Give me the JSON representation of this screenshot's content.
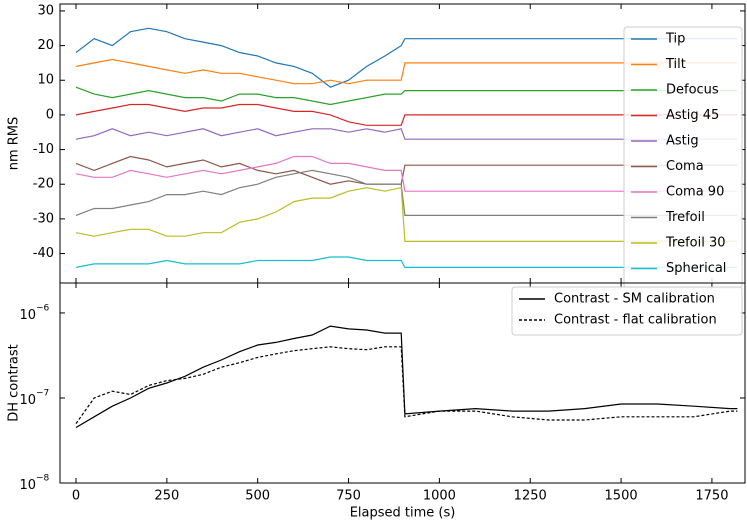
{
  "chart_data": [
    {
      "type": "line",
      "ylabel": "nm RMS",
      "x": [
        0,
        50,
        100,
        150,
        200,
        250,
        300,
        350,
        400,
        450,
        500,
        550,
        600,
        650,
        700,
        750,
        800,
        850,
        895,
        905,
        1000,
        1100,
        1200,
        1300,
        1400,
        1500,
        1600,
        1700,
        1800,
        1820
      ],
      "xlim": [
        -44,
        1841
      ],
      "xticks": [
        0,
        250,
        500,
        750,
        1000,
        1250,
        1500,
        1750
      ],
      "ylim": [
        -48.5,
        32
      ],
      "yticks": [
        30,
        20,
        10,
        0,
        -10,
        -20,
        -30,
        -40
      ],
      "legend": "upper right",
      "series": [
        {
          "name": "Tip",
          "color": "#1f77b4",
          "values": [
            18,
            22,
            20,
            24,
            25,
            24,
            22,
            21,
            20,
            18,
            17,
            15,
            14,
            12,
            8,
            10,
            14,
            17,
            20,
            22,
            22,
            22,
            22,
            22,
            22,
            22,
            22,
            22,
            22,
            22
          ]
        },
        {
          "name": "Tilt",
          "color": "#ff7f0e",
          "values": [
            14,
            15,
            16,
            15,
            14,
            13,
            12,
            13,
            12,
            12,
            11,
            10,
            9,
            9,
            10,
            9,
            10,
            10,
            10,
            15,
            15,
            15,
            15,
            15,
            15,
            15,
            15,
            15,
            15,
            15
          ]
        },
        {
          "name": "Defocus",
          "color": "#2ca02c",
          "values": [
            8,
            6,
            5,
            6,
            7,
            6,
            5,
            5,
            4,
            6,
            6,
            5,
            5,
            4,
            3,
            4,
            5,
            6,
            6,
            7,
            7,
            7,
            7,
            7,
            7,
            7,
            7,
            7,
            7,
            7
          ]
        },
        {
          "name": "Astig 45",
          "color": "#d62728",
          "values": [
            0,
            1,
            2,
            3,
            3,
            2,
            1,
            2,
            2,
            3,
            3,
            2,
            1,
            1,
            0,
            -2,
            -3,
            -3,
            -3,
            0,
            0,
            0,
            0,
            0,
            0,
            0,
            0,
            0,
            0,
            0
          ]
        },
        {
          "name": "Astig",
          "color": "#9467bd",
          "values": [
            -7,
            -6,
            -4,
            -6,
            -5,
            -6,
            -5,
            -4,
            -6,
            -5,
            -4,
            -6,
            -5,
            -4,
            -4,
            -5,
            -4,
            -5,
            -4,
            -7,
            -7,
            -7,
            -7,
            -7,
            -7,
            -7,
            -7,
            -7,
            -7,
            -7
          ]
        },
        {
          "name": "Coma",
          "color": "#8c564b",
          "values": [
            -14,
            -16,
            -14,
            -12,
            -13,
            -15,
            -14,
            -13,
            -15,
            -14,
            -16,
            -17,
            -16,
            -18,
            -20,
            -19,
            -20,
            -20,
            -20,
            -14.5,
            -14.5,
            -14.5,
            -14.5,
            -14.5,
            -14.5,
            -14.5,
            -14.5,
            -14.5,
            -14.5,
            -14.5
          ]
        },
        {
          "name": "Coma 90",
          "color": "#e377c2",
          "values": [
            -17,
            -18,
            -18,
            -16,
            -17,
            -18,
            -17,
            -16,
            -17,
            -16,
            -15,
            -14,
            -12,
            -12,
            -14,
            -14,
            -15,
            -16,
            -16,
            -22,
            -22,
            -22,
            -22,
            -22,
            -22,
            -22,
            -22,
            -22,
            -22,
            -22
          ]
        },
        {
          "name": "Trefoil",
          "color": "#7f7f7f",
          "values": [
            -29,
            -27,
            -27,
            -26,
            -25,
            -23,
            -23,
            -22,
            -23,
            -21,
            -20,
            -18,
            -17,
            -16,
            -17,
            -18,
            -20,
            -20,
            -20,
            -29,
            -29,
            -29,
            -29,
            -29,
            -29,
            -29,
            -29,
            -29,
            -29,
            -29
          ]
        },
        {
          "name": "Trefoil 30",
          "color": "#bcbd22",
          "values": [
            -34,
            -35,
            -34,
            -33,
            -33,
            -35,
            -35,
            -34,
            -34,
            -31,
            -30,
            -28,
            -25,
            -24,
            -24,
            -22,
            -21,
            -22,
            -21,
            -36.5,
            -36.5,
            -36.5,
            -36.5,
            -36.5,
            -36.5,
            -36.5,
            -36.5,
            -36.5,
            -36.5,
            -36.5
          ]
        },
        {
          "name": "Spherical",
          "color": "#17becf",
          "values": [
            -44,
            -43,
            -43,
            -43,
            -43,
            -42,
            -43,
            -43,
            -43,
            -43,
            -42,
            -42,
            -42,
            -42,
            -41,
            -41,
            -42,
            -42,
            -42,
            -44,
            -44,
            -44,
            -44,
            -44,
            -44,
            -44,
            -44,
            -44,
            -44,
            -44
          ]
        }
      ]
    },
    {
      "type": "line",
      "xlabel": "Elapsed time (s)",
      "ylabel": "DH contrast",
      "log_y": true,
      "x": [
        0,
        50,
        100,
        150,
        200,
        250,
        300,
        350,
        400,
        450,
        500,
        550,
        600,
        650,
        700,
        750,
        800,
        850,
        895,
        905,
        1000,
        1100,
        1200,
        1300,
        1400,
        1500,
        1600,
        1700,
        1800,
        1820
      ],
      "xlim": [
        -44,
        1841
      ],
      "xticks": [
        0,
        250,
        500,
        750,
        1000,
        1250,
        1500,
        1750
      ],
      "ylim": [
        1e-08,
        2.25e-06
      ],
      "yticks": [
        {
          "value": 1e-06,
          "label": "10",
          "exponent": "−6"
        },
        {
          "value": 1e-07,
          "label": "10",
          "exponent": "−7"
        },
        {
          "value": 1e-08,
          "label": "10",
          "exponent": "−8"
        }
      ],
      "legend": "upper right",
      "series": [
        {
          "name": "Contrast - SM calibration",
          "color": "#000000",
          "dash": "solid",
          "values": [
            4.5e-08,
            6e-08,
            8e-08,
            1e-07,
            1.3e-07,
            1.5e-07,
            1.8e-07,
            2.3e-07,
            2.8e-07,
            3.5e-07,
            4.2e-07,
            4.5e-07,
            5e-07,
            5.5e-07,
            7e-07,
            6.5e-07,
            6.3e-07,
            5.8e-07,
            5.8e-07,
            6.5e-08,
            7e-08,
            7.5e-08,
            7e-08,
            7e-08,
            7.5e-08,
            8.5e-08,
            8.5e-08,
            8e-08,
            7.5e-08,
            7.5e-08
          ]
        },
        {
          "name": "Contrast - flat calibration",
          "color": "#000000",
          "dash": "dashed",
          "values": [
            5e-08,
            1e-07,
            1.2e-07,
            1.1e-07,
            1.4e-07,
            1.6e-07,
            1.7e-07,
            1.9e-07,
            2.3e-07,
            2.6e-07,
            3e-07,
            3.3e-07,
            3.6e-07,
            3.8e-07,
            4e-07,
            3.8e-07,
            3.7e-07,
            4e-07,
            4e-07,
            6e-08,
            7e-08,
            7e-08,
            6e-08,
            5.5e-08,
            5.5e-08,
            6e-08,
            6e-08,
            6e-08,
            7e-08,
            7e-08
          ]
        }
      ]
    }
  ]
}
